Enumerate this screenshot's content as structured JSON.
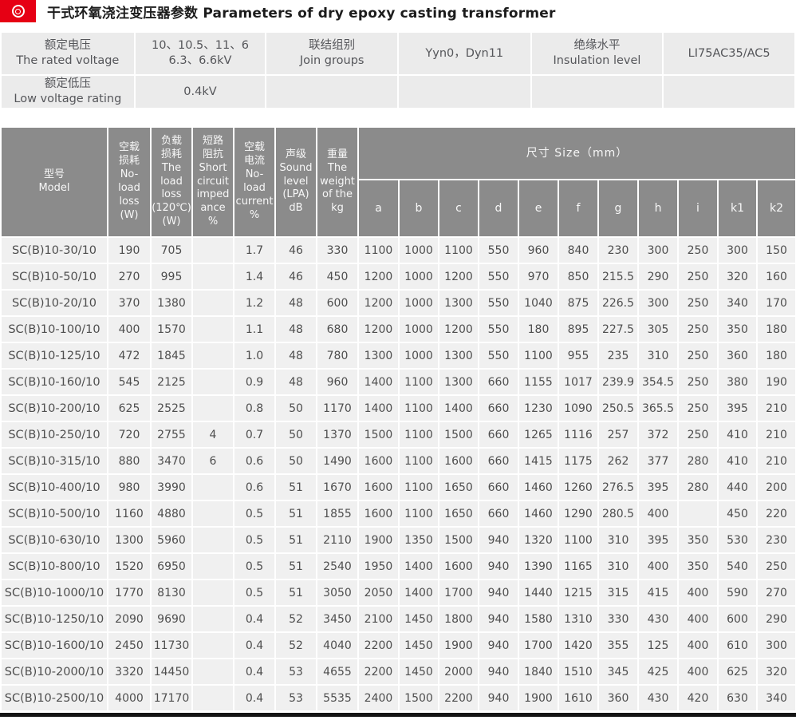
{
  "page": {
    "title": "干式环氧浇注变压器参数 Parameters of dry epoxy casting transformer"
  },
  "colors": {
    "accent_red": "#e60014",
    "table_header_gray": "#8b8b8b",
    "row_background": "#f0f0f0",
    "info_cell_background": "#ebebeb"
  },
  "info_table": {
    "rated_voltage_label": "额定电压\nThe rated voltage",
    "rated_voltage_value": "10、10.5、11、6\n6.3、6.6kV",
    "join_groups_label": "联结组别\nJoin groups",
    "join_groups_value": "Yyn0，Dyn11",
    "insulation_label": "绝缘水平\nInsulation level",
    "insulation_value": "LI75AC35/AC5",
    "low_voltage_label": "额定低压\nLow voltage rating",
    "low_voltage_value": "0.4kV"
  },
  "table": {
    "headers": {
      "model": "型号\nModel",
      "no_load_loss": "空载\n损耗\nNo-\nload\nloss\n(W)",
      "load_loss": "负载\n损耗\nThe\nload\nloss\n(120℃)\n(W)",
      "short_circuit_impedance": "短路\n阻抗\nShort\ncircuit\nimped\nance\n%",
      "no_load_current": "空载\n电流\nNo-\nload\ncurrent\n%",
      "sound_level": "声级\nSound\nlevel\n(LPA)\ndB",
      "weight": "重量\nThe\nweight\nof the\nkg",
      "size_group": "尺寸 Size（mm）",
      "size_columns": [
        "a",
        "b",
        "c",
        "d",
        "e",
        "f",
        "g",
        "h",
        "i",
        "k1",
        "k2"
      ]
    },
    "rows": [
      [
        "SC(B)10-30/10",
        "190",
        "705",
        "",
        "1.7",
        "46",
        "330",
        "1100",
        "1000",
        "1100",
        "550",
        "960",
        "840",
        "230",
        "300",
        "250",
        "300",
        "150"
      ],
      [
        "SC(B)10-50/10",
        "270",
        "995",
        "",
        "1.4",
        "46",
        "450",
        "1200",
        "1000",
        "1200",
        "550",
        "970",
        "850",
        "215.5",
        "290",
        "250",
        "320",
        "160"
      ],
      [
        "SC(B)10-20/10",
        "370",
        "1380",
        "",
        "1.2",
        "48",
        "600",
        "1200",
        "1000",
        "1300",
        "550",
        "1040",
        "875",
        "226.5",
        "300",
        "250",
        "340",
        "170"
      ],
      [
        "SC(B)10-100/10",
        "400",
        "1570",
        "",
        "1.1",
        "48",
        "680",
        "1200",
        "1000",
        "1200",
        "550",
        "180",
        "895",
        "227.5",
        "305",
        "250",
        "350",
        "180"
      ],
      [
        "SC(B)10-125/10",
        "472",
        "1845",
        "",
        "1.0",
        "48",
        "780",
        "1300",
        "1000",
        "1300",
        "550",
        "1100",
        "955",
        "235",
        "310",
        "250",
        "360",
        "180"
      ],
      [
        "SC(B)10-160/10",
        "545",
        "2125",
        "",
        "0.9",
        "48",
        "960",
        "1400",
        "1100",
        "1300",
        "660",
        "1155",
        "1017",
        "239.9",
        "354.5",
        "250",
        "380",
        "190"
      ],
      [
        "SC(B)10-200/10",
        "625",
        "2525",
        "",
        "0.8",
        "50",
        "1170",
        "1400",
        "1100",
        "1400",
        "660",
        "1230",
        "1090",
        "250.5",
        "365.5",
        "250",
        "395",
        "210"
      ],
      [
        "SC(B)10-250/10",
        "720",
        "2755",
        "4",
        "0.7",
        "50",
        "1370",
        "1500",
        "1100",
        "1500",
        "660",
        "1265",
        "1116",
        "257",
        "372",
        "250",
        "410",
        "210"
      ],
      [
        "SC(B)10-315/10",
        "880",
        "3470",
        "6",
        "0.6",
        "50",
        "1490",
        "1600",
        "1100",
        "1600",
        "660",
        "1415",
        "1175",
        "262",
        "377",
        "280",
        "410",
        "210"
      ],
      [
        "SC(B)10-400/10",
        "980",
        "3990",
        "",
        "0.6",
        "51",
        "1670",
        "1600",
        "1100",
        "1650",
        "660",
        "1460",
        "1260",
        "276.5",
        "395",
        "280",
        "440",
        "200"
      ],
      [
        "SC(B)10-500/10",
        "1160",
        "4880",
        "",
        "0.5",
        "51",
        "1855",
        "1600",
        "1100",
        "1650",
        "660",
        "1460",
        "1290",
        "280.5",
        "400",
        "",
        "450",
        "220"
      ],
      [
        "SC(B)10-630/10",
        "1300",
        "5960",
        "",
        "0.5",
        "51",
        "2110",
        "1900",
        "1350",
        "1500",
        "940",
        "1320",
        "1100",
        "310",
        "395",
        "350",
        "530",
        "230"
      ],
      [
        "SC(B)10-800/10",
        "1520",
        "6950",
        "",
        "0.5",
        "51",
        "2540",
        "1950",
        "1400",
        "1600",
        "940",
        "1390",
        "1165",
        "310",
        "400",
        "350",
        "540",
        "250"
      ],
      [
        "SC(B)10-1000/10",
        "1770",
        "8130",
        "",
        "0.5",
        "51",
        "3050",
        "2050",
        "1400",
        "1700",
        "940",
        "1440",
        "1215",
        "315",
        "415",
        "400",
        "590",
        "270"
      ],
      [
        "SC(B)10-1250/10",
        "2090",
        "9690",
        "",
        "0.4",
        "52",
        "3450",
        "2100",
        "1450",
        "1800",
        "940",
        "1580",
        "1310",
        "330",
        "430",
        "400",
        "600",
        "290"
      ],
      [
        "SC(B)10-1600/10",
        "2450",
        "11730",
        "",
        "0.4",
        "52",
        "4040",
        "2200",
        "1450",
        "1900",
        "940",
        "1700",
        "1420",
        "355",
        "125",
        "400",
        "610",
        "300"
      ],
      [
        "SC(B)10-2000/10",
        "3320",
        "14450",
        "",
        "0.4",
        "53",
        "4655",
        "2200",
        "1450",
        "2000",
        "940",
        "1840",
        "1510",
        "345",
        "425",
        "400",
        "625",
        "320"
      ],
      [
        "SC(B)10-2500/10",
        "4000",
        "17170",
        "",
        "0.4",
        "53",
        "5535",
        "2400",
        "1500",
        "2200",
        "940",
        "1900",
        "1610",
        "360",
        "430",
        "420",
        "630",
        "340"
      ]
    ]
  }
}
